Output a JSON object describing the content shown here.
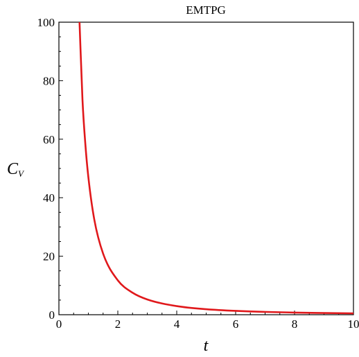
{
  "chart_data": {
    "type": "line",
    "title": "EMTPG",
    "xlabel": "t",
    "ylabel": "C",
    "ylabel_subscript": "V",
    "xlim": [
      0,
      10
    ],
    "ylim": [
      0,
      100
    ],
    "x_ticks": [
      0,
      2,
      4,
      6,
      8,
      10
    ],
    "y_ticks": [
      0,
      20,
      40,
      60,
      80,
      100
    ],
    "grid": false,
    "series": [
      {
        "color": "#e0181b",
        "x": [
          0.7,
          0.8,
          0.9,
          1.0,
          1.2,
          1.5,
          2.0,
          2.5,
          3.0,
          4.0,
          5.0,
          6.0,
          8.0,
          10.0
        ],
        "y": [
          100,
          73.5,
          58.0,
          47.0,
          32.6,
          20.9,
          11.75,
          7.52,
          5.22,
          2.94,
          1.88,
          1.31,
          0.73,
          0.47
        ]
      }
    ]
  }
}
